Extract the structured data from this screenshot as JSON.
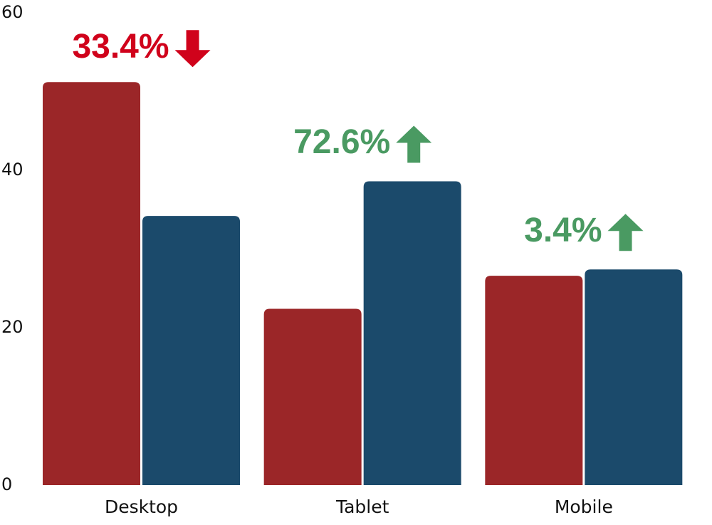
{
  "chart_data": {
    "type": "bar",
    "categories": [
      "Desktop",
      "Tablet",
      "Mobile"
    ],
    "series": [
      {
        "color": "#9b2628",
        "values": [
          51.2,
          22.4,
          26.6
        ]
      },
      {
        "color": "#1b4a6b",
        "values": [
          34.2,
          38.6,
          27.4
        ]
      }
    ],
    "ylim": [
      0,
      60
    ],
    "yticks": [
      0,
      20,
      40,
      60
    ],
    "grid": false,
    "annotations": [
      "33.4%",
      "72.6%",
      "3.4%"
    ],
    "annotation_directions": [
      "down",
      "up",
      "up"
    ],
    "annotation_colors": [
      "#d0021b",
      "#4a9a62",
      "#4a9a62"
    ]
  }
}
